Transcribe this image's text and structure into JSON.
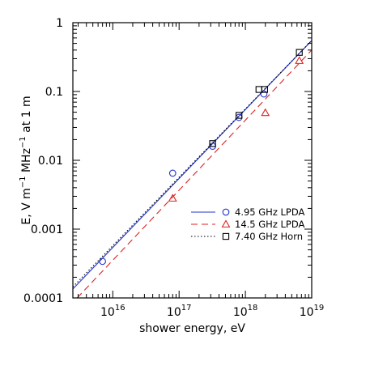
{
  "chart_data": {
    "type": "scatter",
    "title": "",
    "xlabel": "shower energy, eV",
    "ylabel_parts": {
      "a": "E, V m",
      "a_sup": "−1",
      "b": " MHz",
      "b_sup": "−1",
      "c": " at 1 m"
    },
    "x_scale": "log",
    "y_scale": "log",
    "xlim": [
      2500000000000000.0,
      1e+19
    ],
    "ylim": [
      0.0001,
      1
    ],
    "x_ticks": [
      {
        "value": 1e+16,
        "base": "10",
        "exp": "16"
      },
      {
        "value": 1e+17,
        "base": "10",
        "exp": "17"
      },
      {
        "value": 1e+18,
        "base": "10",
        "exp": "18"
      },
      {
        "value": 1e+19,
        "base": "10",
        "exp": "19"
      }
    ],
    "y_ticks": [
      {
        "value": 0.0001,
        "label": "0.0001"
      },
      {
        "value": 0.001,
        "label": "0.001"
      },
      {
        "value": 0.01,
        "label": "0.01"
      },
      {
        "value": 0.1,
        "label": "0.1"
      },
      {
        "value": 1,
        "label": "1"
      }
    ],
    "grid": false,
    "legend_position": "lower-right",
    "series": [
      {
        "name": "4.95 GHz LPDA",
        "marker": "circle",
        "line_style": "solid",
        "color": "#2233cc",
        "points": [
          {
            "x": 7000000000000000.0,
            "y": 0.00034
          },
          {
            "x": 8e+16,
            "y": 0.0065
          },
          {
            "x": 3.2e+17,
            "y": 0.016
          },
          {
            "x": 8e+17,
            "y": 0.042
          },
          {
            "x": 1.9e+18,
            "y": 0.092
          }
        ],
        "fit": [
          {
            "x": 2500000000000000.0,
            "y": 0.000135
          },
          {
            "x": 1e+19,
            "y": 0.55
          }
        ]
      },
      {
        "name": "14.5 GHz LPDA",
        "marker": "triangle",
        "line_style": "dashed",
        "color": "#dd2222",
        "points": [
          {
            "x": 8e+16,
            "y": 0.0028
          },
          {
            "x": 2e+18,
            "y": 0.049
          },
          {
            "x": 6.5e+18,
            "y": 0.28
          }
        ],
        "fit": [
          {
            "x": 2900000000000000.0,
            "y": 0.0001
          },
          {
            "x": 1e+19,
            "y": 0.4
          }
        ]
      },
      {
        "name": "7.40 GHz Horn",
        "marker": "square",
        "line_style": "dotted",
        "color": "#000000",
        "points": [
          {
            "x": 3.2e+17,
            "y": 0.0175
          },
          {
            "x": 8e+17,
            "y": 0.045
          },
          {
            "x": 1.6e+18,
            "y": 0.107
          },
          {
            "x": 1.95e+18,
            "y": 0.107
          },
          {
            "x": 6.5e+18,
            "y": 0.37
          }
        ],
        "fit": [
          {
            "x": 2500000000000000.0,
            "y": 0.000145
          },
          {
            "x": 1e+19,
            "y": 0.55
          }
        ]
      }
    ]
  }
}
